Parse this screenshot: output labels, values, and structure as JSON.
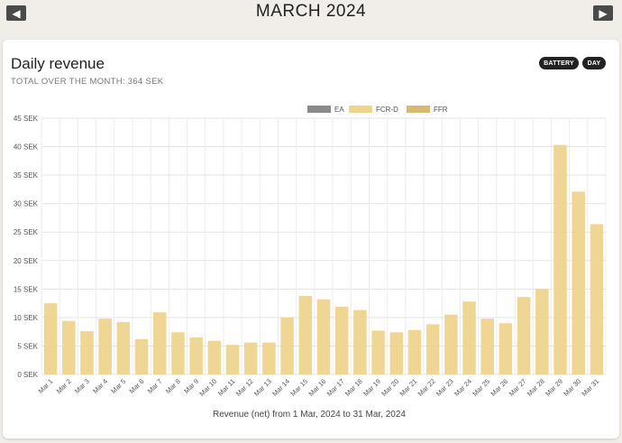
{
  "header": {
    "month": "MARCH 2024",
    "prev_icon": "chevron-left-icon",
    "next_icon": "chevron-right-icon"
  },
  "card": {
    "title": "Daily revenue",
    "subtitle": "TOTAL OVER THE MONTH: 364 SEK",
    "battery_button": "BATTERY",
    "day_button": "DAY"
  },
  "chart_data": {
    "type": "bar",
    "title": "",
    "xlabel": "Revenue (net) from 1 Mar, 2024 to 31 Mar, 2024",
    "ylabel": "",
    "ylim": [
      0,
      45
    ],
    "yticks": [
      0,
      5,
      10,
      15,
      20,
      25,
      30,
      35,
      40,
      45
    ],
    "ytick_suffix": " SEK",
    "grid": true,
    "legend_position": "top-center",
    "legend": [
      {
        "name": "EA",
        "color": "#8a8a8a"
      },
      {
        "name": "FCR-D",
        "color": "#f0d38c"
      },
      {
        "name": "FFR",
        "color": "#d9b96f"
      }
    ],
    "categories": [
      "Mar 1",
      "Mar 2",
      "Mar 3",
      "Mar 4",
      "Mar 5",
      "Mar 6",
      "Mar 7",
      "Mar 8",
      "Mar 9",
      "Mar 10",
      "Mar 11",
      "Mar 12",
      "Mar 13",
      "Mar 14",
      "Mar 15",
      "Mar 16",
      "Mar 17",
      "Mar 18",
      "Mar 19",
      "Mar 20",
      "Mar 21",
      "Mar 22",
      "Mar 23",
      "Mar 24",
      "Mar 25",
      "Mar 26",
      "Mar 27",
      "Mar 28",
      "Mar 29",
      "Mar 30",
      "Mar 31"
    ],
    "series": [
      {
        "name": "FCR-D",
        "color": "#efd28b",
        "values": [
          12.5,
          9.4,
          7.6,
          9.8,
          9.2,
          6.2,
          10.9,
          7.4,
          6.5,
          5.9,
          5.2,
          5.6,
          5.6,
          10.0,
          13.8,
          13.2,
          11.9,
          11.3,
          7.7,
          7.4,
          7.8,
          8.8,
          10.5,
          12.8,
          9.8,
          9.0,
          13.6,
          15.0,
          40.3,
          32.1,
          26.4
        ]
      }
    ]
  }
}
